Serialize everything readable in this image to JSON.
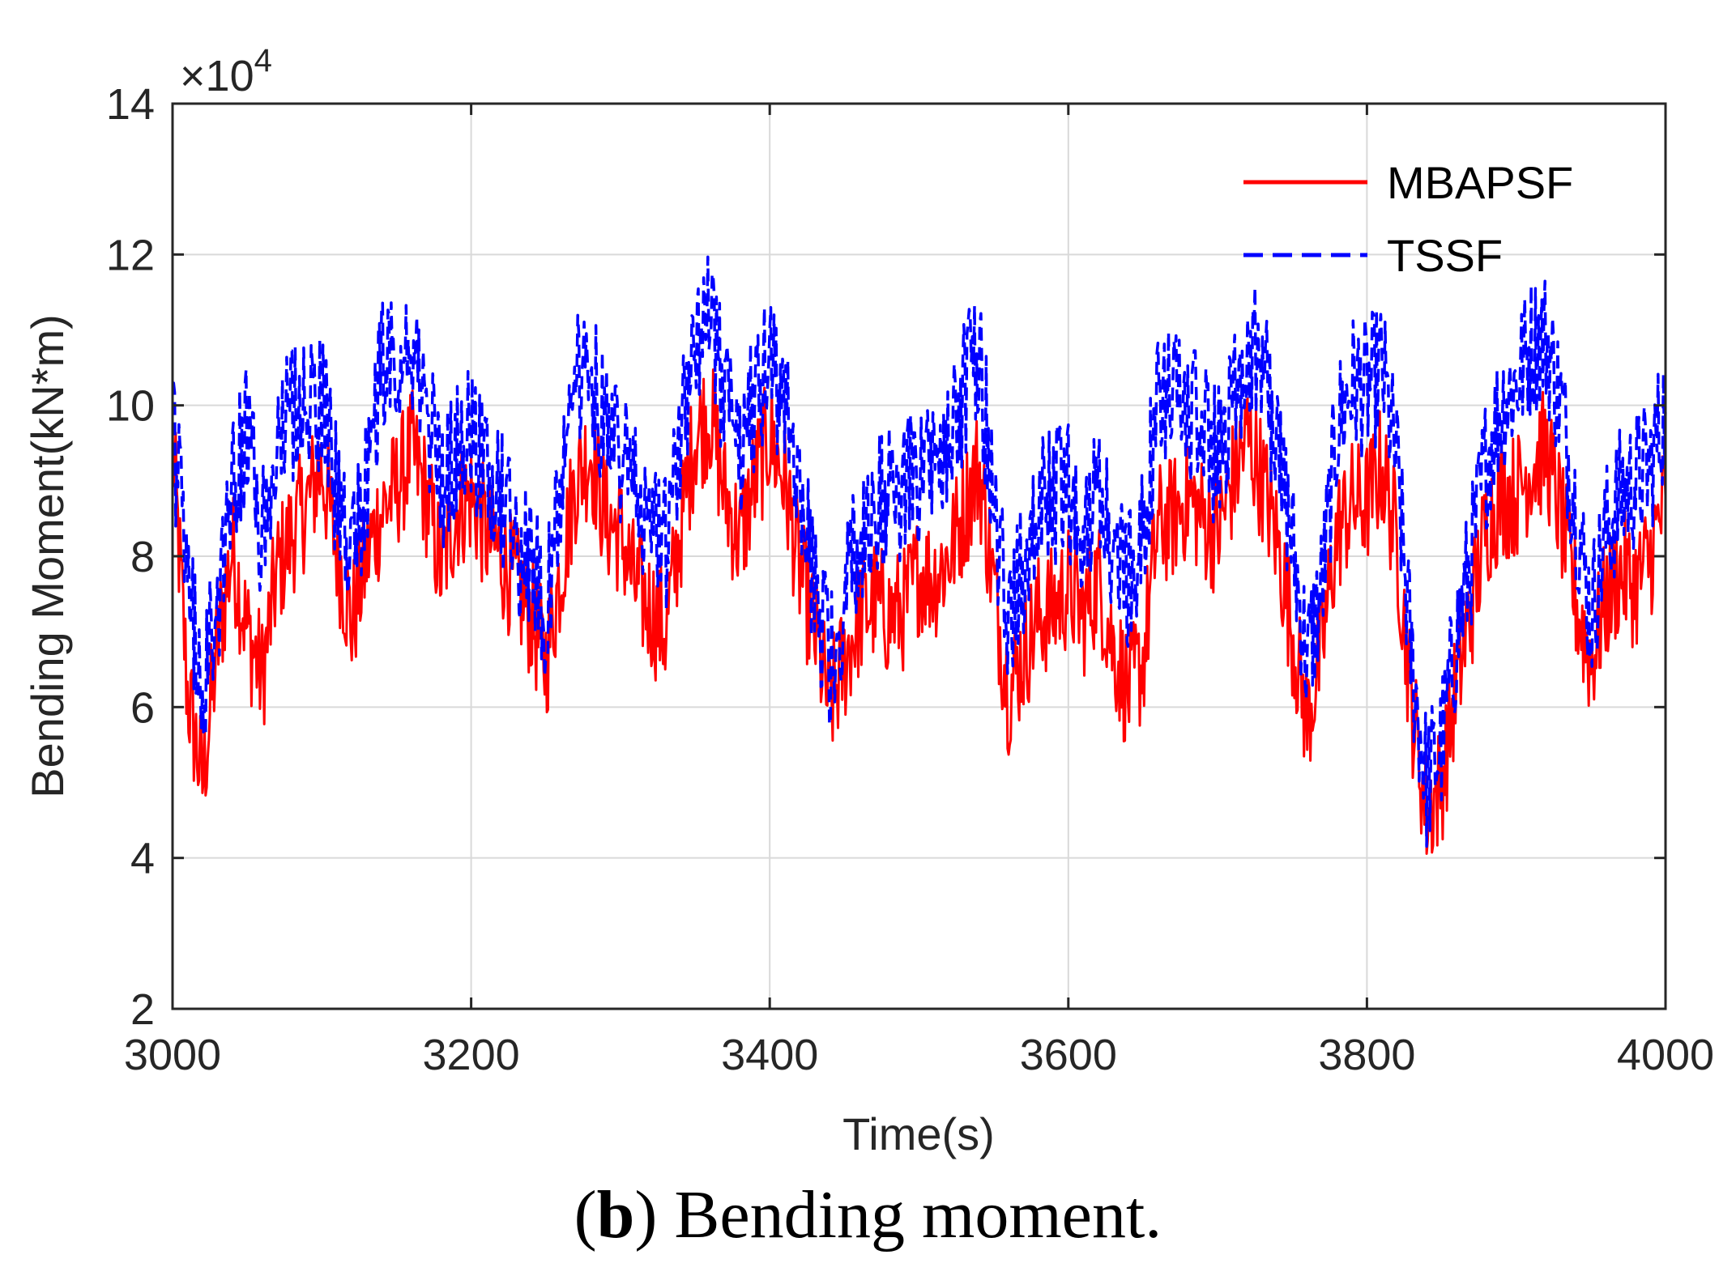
{
  "chart_data": {
    "type": "line",
    "title": "",
    "xlabel": "Time(s)",
    "ylabel": "Bending Moment(kN*m)",
    "y_exponent_label": "×10",
    "y_exponent_power": "4",
    "xlim": [
      3000,
      4000
    ],
    "ylim": [
      2,
      14
    ],
    "x_ticks": [
      3000,
      3200,
      3400,
      3600,
      3800,
      4000
    ],
    "y_ticks": [
      2,
      4,
      6,
      8,
      10,
      12,
      14
    ],
    "grid": true,
    "legend_position": "top-right",
    "x": [
      3000,
      3010,
      3020,
      3030,
      3040,
      3050,
      3060,
      3070,
      3080,
      3090,
      3100,
      3110,
      3120,
      3130,
      3140,
      3150,
      3160,
      3170,
      3180,
      3190,
      3200,
      3210,
      3220,
      3230,
      3240,
      3250,
      3260,
      3270,
      3280,
      3290,
      3300,
      3310,
      3320,
      3330,
      3340,
      3350,
      3360,
      3370,
      3380,
      3390,
      3400,
      3410,
      3420,
      3430,
      3440,
      3450,
      3460,
      3470,
      3480,
      3490,
      3500,
      3510,
      3520,
      3530,
      3540,
      3550,
      3560,
      3570,
      3580,
      3590,
      3600,
      3610,
      3620,
      3630,
      3640,
      3650,
      3660,
      3670,
      3680,
      3690,
      3700,
      3710,
      3720,
      3730,
      3740,
      3750,
      3760,
      3770,
      3780,
      3790,
      3800,
      3810,
      3820,
      3830,
      3840,
      3850,
      3860,
      3870,
      3880,
      3890,
      3900,
      3910,
      3920,
      3930,
      3940,
      3950,
      3960,
      3970,
      3980,
      3990,
      4000
    ],
    "series": [
      {
        "name": "MBAPSF",
        "color": "#ff0000",
        "style": "solid",
        "values": [
          9.5,
          6.2,
          5.0,
          6.8,
          8.1,
          7.0,
          6.4,
          7.8,
          8.3,
          8.7,
          9.2,
          8.1,
          7.1,
          8.0,
          8.6,
          8.9,
          9.4,
          8.8,
          7.8,
          8.6,
          8.8,
          8.3,
          8.0,
          7.6,
          7.2,
          6.6,
          7.8,
          9.0,
          9.4,
          8.5,
          8.3,
          7.6,
          7.3,
          7.0,
          8.3,
          9.6,
          9.9,
          8.8,
          8.2,
          9.0,
          9.6,
          9.0,
          7.8,
          7.0,
          6.0,
          6.6,
          7.2,
          7.4,
          7.2,
          7.3,
          7.8,
          7.7,
          8.0,
          8.6,
          9.2,
          7.6,
          6.2,
          6.7,
          7.2,
          7.3,
          7.6,
          7.2,
          7.7,
          6.8,
          6.2,
          6.6,
          8.4,
          8.5,
          8.8,
          8.5,
          8.3,
          9.0,
          9.6,
          9.0,
          8.2,
          7.0,
          5.8,
          6.8,
          8.3,
          8.7,
          8.7,
          9.2,
          8.2,
          6.0,
          4.6,
          5.0,
          6.3,
          7.3,
          8.4,
          8.8,
          8.8,
          9.2,
          9.4,
          8.5,
          7.4,
          6.6,
          7.4,
          7.8,
          7.6,
          8.0,
          8.8
        ]
      },
      {
        "name": "TSSF",
        "color": "#0000ff",
        "style": "dashed",
        "values": [
          9.8,
          7.6,
          6.2,
          7.4,
          9.0,
          9.6,
          8.2,
          9.4,
          9.9,
          10.2,
          10.0,
          8.8,
          7.8,
          9.0,
          10.4,
          10.8,
          10.4,
          10.0,
          9.0,
          9.3,
          9.6,
          9.2,
          8.8,
          8.2,
          7.9,
          7.3,
          8.9,
          10.2,
          10.6,
          9.6,
          9.3,
          8.8,
          8.3,
          8.1,
          9.5,
          10.8,
          11.2,
          10.0,
          9.3,
          10.1,
          10.6,
          10.0,
          8.7,
          7.6,
          6.7,
          7.4,
          8.3,
          8.7,
          8.8,
          8.9,
          9.0,
          9.1,
          9.4,
          10.2,
          10.8,
          8.6,
          7.2,
          7.8,
          8.6,
          8.8,
          8.9,
          8.4,
          8.8,
          8.0,
          7.7,
          8.4,
          9.9,
          10.1,
          10.0,
          9.6,
          9.3,
          10.1,
          10.8,
          10.6,
          9.4,
          8.2,
          6.6,
          7.6,
          9.7,
          10.3,
          10.2,
          10.5,
          9.2,
          6.6,
          5.0,
          5.5,
          6.9,
          8.0,
          9.3,
          10.0,
          10.3,
          10.8,
          10.9,
          10.0,
          8.6,
          7.2,
          8.3,
          8.8,
          9.0,
          9.2,
          10.0
        ]
      }
    ]
  },
  "caption": {
    "letter": "b",
    "text": " Bending moment."
  }
}
